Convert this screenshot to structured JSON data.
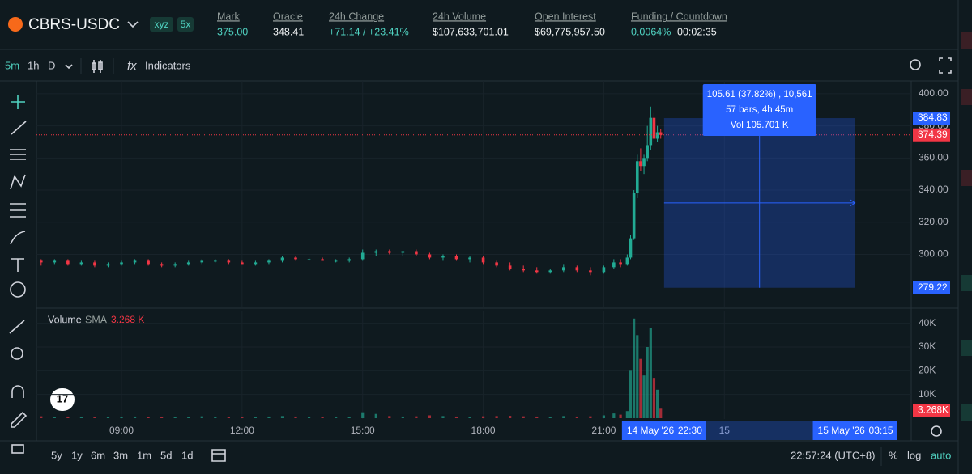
{
  "header": {
    "symbol": "CBRS-USDC",
    "badges": [
      "xyz",
      "5x"
    ],
    "stats": [
      {
        "label": "Mark",
        "value": "375.00"
      },
      {
        "label": "Oracle",
        "value": "348.41"
      },
      {
        "label": "24h Change",
        "value": "+71.14 / +23.41%"
      },
      {
        "label": "24h Volume",
        "value": "$107,633,701.01"
      },
      {
        "label": "Open Interest",
        "value": "$69,775,957.50"
      },
      {
        "label": "Funding / Countdown",
        "value": "0.0064%",
        "extra": "00:02:35"
      }
    ]
  },
  "toolbar": {
    "intervals": [
      "5m",
      "1h",
      "D"
    ],
    "indicators": "Indicators"
  },
  "bottom_bar": {
    "ranges": [
      "5y",
      "1y",
      "6m",
      "3m",
      "1m",
      "5d",
      "1d"
    ],
    "clock": "22:57:24 (UTC+8)",
    "options": [
      "%",
      "log",
      "auto"
    ]
  },
  "chart_data": {
    "type": "candlestick",
    "up_color": "#22ab94",
    "down_color": "#f23645",
    "xlim": [
      413,
      1719
    ],
    "xticks": [
      {
        "value": 540,
        "label": "09:00"
      },
      {
        "value": 720,
        "label": "12:00"
      },
      {
        "value": 900,
        "label": "15:00"
      },
      {
        "value": 1080,
        "label": "18:00"
      },
      {
        "value": 1260,
        "label": "21:00"
      },
      {
        "value": 1440,
        "label": "15"
      }
    ],
    "ylim": [
      267,
      408
    ],
    "yticks": [
      {
        "value": 300,
        "label": "300.00"
      },
      {
        "value": 320,
        "label": "320.00"
      },
      {
        "value": 340,
        "label": "340.00"
      },
      {
        "value": 360,
        "label": "360.00"
      },
      {
        "value": 380,
        "label": "380.00"
      },
      {
        "value": 400,
        "label": "400.00"
      }
    ],
    "grid": true,
    "last_price": 374.39,
    "candles": [
      {
        "t": 420,
        "o": 296,
        "h": 297,
        "l": 293,
        "c": 295,
        "v": 800
      },
      {
        "t": 440,
        "o": 295,
        "h": 297,
        "l": 294,
        "c": 296,
        "v": 600
      },
      {
        "t": 460,
        "o": 296,
        "h": 297,
        "l": 293,
        "c": 294,
        "v": 700
      },
      {
        "t": 480,
        "o": 294,
        "h": 296,
        "l": 293,
        "c": 295,
        "v": 500
      },
      {
        "t": 500,
        "o": 295,
        "h": 296,
        "l": 292,
        "c": 293,
        "v": 600
      },
      {
        "t": 520,
        "o": 293,
        "h": 295,
        "l": 292,
        "c": 294,
        "v": 500
      },
      {
        "t": 540,
        "o": 294,
        "h": 296,
        "l": 293,
        "c": 295,
        "v": 400
      },
      {
        "t": 560,
        "o": 295,
        "h": 297,
        "l": 294,
        "c": 296,
        "v": 700
      },
      {
        "t": 580,
        "o": 296,
        "h": 297,
        "l": 293,
        "c": 294,
        "v": 500
      },
      {
        "t": 600,
        "o": 294,
        "h": 295,
        "l": 292,
        "c": 293,
        "v": 400
      },
      {
        "t": 620,
        "o": 293,
        "h": 295,
        "l": 292,
        "c": 294,
        "v": 500
      },
      {
        "t": 640,
        "o": 294,
        "h": 296,
        "l": 293,
        "c": 295,
        "v": 600
      },
      {
        "t": 660,
        "o": 295,
        "h": 297,
        "l": 294,
        "c": 296,
        "v": 800
      },
      {
        "t": 680,
        "o": 296,
        "h": 297,
        "l": 295,
        "c": 296,
        "v": 500
      },
      {
        "t": 700,
        "o": 296,
        "h": 297,
        "l": 294,
        "c": 295,
        "v": 400
      },
      {
        "t": 720,
        "o": 295,
        "h": 296,
        "l": 294,
        "c": 294,
        "v": 500
      },
      {
        "t": 740,
        "o": 294,
        "h": 296,
        "l": 293,
        "c": 295,
        "v": 600
      },
      {
        "t": 760,
        "o": 295,
        "h": 297,
        "l": 294,
        "c": 296,
        "v": 700
      },
      {
        "t": 780,
        "o": 296,
        "h": 299,
        "l": 295,
        "c": 298,
        "v": 900
      },
      {
        "t": 800,
        "o": 298,
        "h": 299,
        "l": 296,
        "c": 297,
        "v": 700
      },
      {
        "t": 820,
        "o": 297,
        "h": 298,
        "l": 296,
        "c": 297,
        "v": 500
      },
      {
        "t": 840,
        "o": 297,
        "h": 298,
        "l": 296,
        "c": 296,
        "v": 400
      },
      {
        "t": 860,
        "o": 296,
        "h": 297,
        "l": 295,
        "c": 296,
        "v": 400
      },
      {
        "t": 880,
        "o": 296,
        "h": 298,
        "l": 295,
        "c": 297,
        "v": 600
      },
      {
        "t": 900,
        "o": 297,
        "h": 303,
        "l": 296,
        "c": 301,
        "v": 2500
      },
      {
        "t": 920,
        "o": 301,
        "h": 303,
        "l": 299,
        "c": 302,
        "v": 1800
      },
      {
        "t": 940,
        "o": 302,
        "h": 303,
        "l": 300,
        "c": 301,
        "v": 900
      },
      {
        "t": 960,
        "o": 301,
        "h": 302,
        "l": 299,
        "c": 302,
        "v": 700
      },
      {
        "t": 980,
        "o": 302,
        "h": 303,
        "l": 299,
        "c": 300,
        "v": 800
      },
      {
        "t": 1000,
        "o": 300,
        "h": 301,
        "l": 297,
        "c": 298,
        "v": 1200
      },
      {
        "t": 1020,
        "o": 298,
        "h": 300,
        "l": 296,
        "c": 299,
        "v": 900
      },
      {
        "t": 1040,
        "o": 299,
        "h": 300,
        "l": 296,
        "c": 297,
        "v": 700
      },
      {
        "t": 1060,
        "o": 297,
        "h": 299,
        "l": 295,
        "c": 298,
        "v": 600
      },
      {
        "t": 1080,
        "o": 298,
        "h": 299,
        "l": 294,
        "c": 295,
        "v": 800
      },
      {
        "t": 1100,
        "o": 295,
        "h": 296,
        "l": 292,
        "c": 293,
        "v": 900
      },
      {
        "t": 1120,
        "o": 293,
        "h": 295,
        "l": 290,
        "c": 291,
        "v": 1000
      },
      {
        "t": 1140,
        "o": 291,
        "h": 293,
        "l": 289,
        "c": 290,
        "v": 800
      },
      {
        "t": 1160,
        "o": 290,
        "h": 292,
        "l": 288,
        "c": 289,
        "v": 700
      },
      {
        "t": 1180,
        "o": 289,
        "h": 291,
        "l": 288,
        "c": 290,
        "v": 600
      },
      {
        "t": 1200,
        "o": 290,
        "h": 294,
        "l": 289,
        "c": 292,
        "v": 900
      },
      {
        "t": 1220,
        "o": 292,
        "h": 293,
        "l": 289,
        "c": 290,
        "v": 700
      },
      {
        "t": 1240,
        "o": 290,
        "h": 292,
        "l": 287,
        "c": 289,
        "v": 800
      },
      {
        "t": 1260,
        "o": 289,
        "h": 293,
        "l": 288,
        "c": 292,
        "v": 1200
      },
      {
        "t": 1275,
        "o": 292,
        "h": 297,
        "l": 291,
        "c": 295,
        "v": 2000
      },
      {
        "t": 1285,
        "o": 295,
        "h": 297,
        "l": 292,
        "c": 294,
        "v": 1500
      },
      {
        "t": 1295,
        "o": 294,
        "h": 300,
        "l": 293,
        "c": 298,
        "v": 3000
      },
      {
        "t": 1300,
        "o": 298,
        "h": 312,
        "l": 297,
        "c": 310,
        "v": 20000
      },
      {
        "t": 1305,
        "o": 310,
        "h": 340,
        "l": 309,
        "c": 338,
        "v": 42000
      },
      {
        "t": 1310,
        "o": 338,
        "h": 362,
        "l": 335,
        "c": 358,
        "v": 35000
      },
      {
        "t": 1315,
        "o": 358,
        "h": 366,
        "l": 352,
        "c": 355,
        "v": 25000
      },
      {
        "t": 1320,
        "o": 355,
        "h": 362,
        "l": 350,
        "c": 360,
        "v": 18000
      },
      {
        "t": 1325,
        "o": 360,
        "h": 380,
        "l": 358,
        "c": 368,
        "v": 30000
      },
      {
        "t": 1330,
        "o": 368,
        "h": 392,
        "l": 365,
        "c": 385,
        "v": 38000
      },
      {
        "t": 1335,
        "o": 385,
        "h": 388,
        "l": 370,
        "c": 372,
        "v": 17000
      },
      {
        "t": 1340,
        "o": 372,
        "h": 380,
        "l": 370,
        "c": 376,
        "v": 12000
      },
      {
        "t": 1345,
        "o": 376,
        "h": 378,
        "l": 372,
        "c": 374.39,
        "v": 4000
      }
    ],
    "volume": {
      "title": "Volume",
      "sma_name": "SMA",
      "sma": 3268,
      "sma_label": "3.268 K",
      "sma_axis_label": "3.268K",
      "ylim": [
        0,
        45000
      ],
      "yticks": [
        {
          "value": 10000,
          "label": "10K"
        },
        {
          "value": 20000,
          "label": "20K"
        },
        {
          "value": 30000,
          "label": "30K"
        },
        {
          "value": 40000,
          "label": "40K"
        }
      ]
    },
    "measure": {
      "top": 384.83,
      "bottom": 279.22,
      "x_range": [
        1350,
        1635
      ],
      "lines": [
        "105.61 (37.82%) , 10,561",
        "57 bars, 4h 45m",
        "Vol 105.701 K"
      ],
      "from_date": "14 May '26",
      "from_time": "22:30",
      "to_date": "15 May '26",
      "to_time": "03:15"
    }
  }
}
